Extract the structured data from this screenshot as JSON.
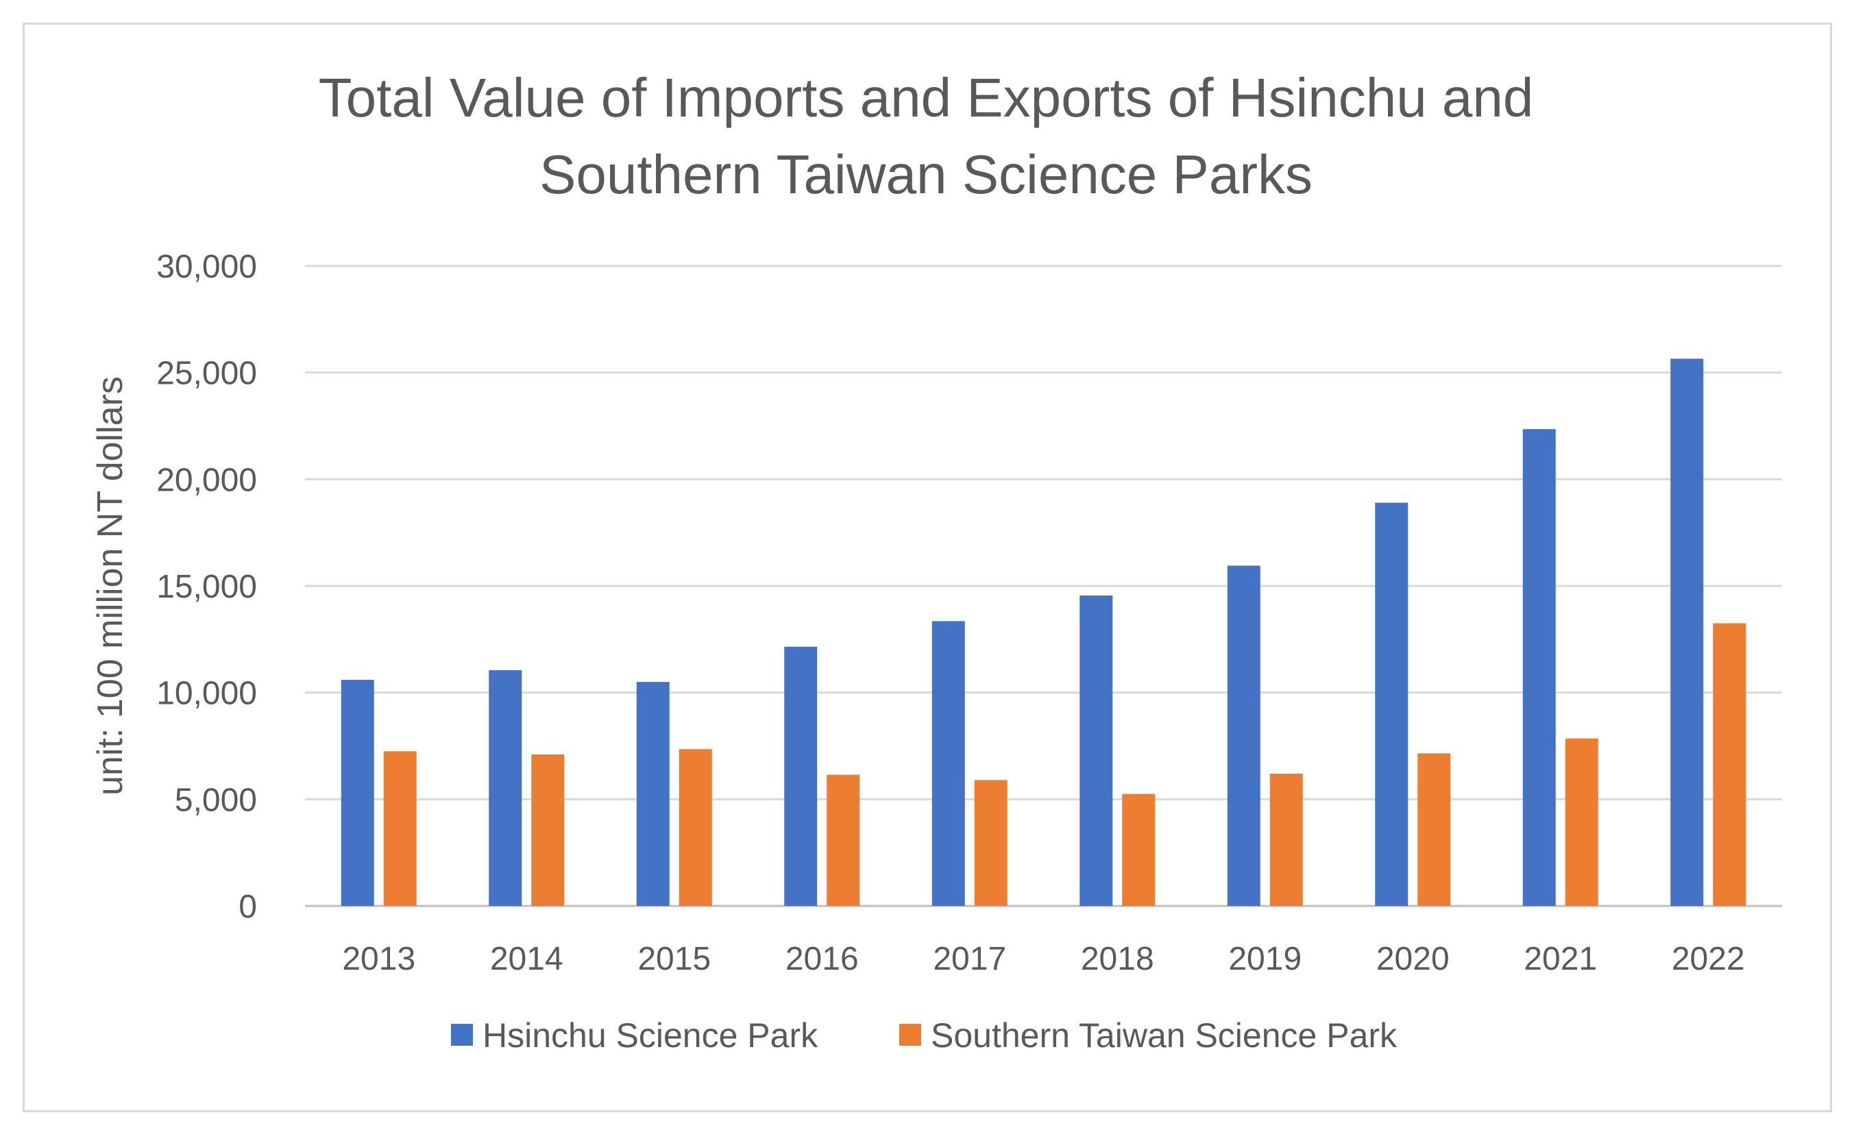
{
  "chart_data": {
    "type": "bar",
    "title": [
      "Total Value of Imports and Exports of Hsinchu and",
      "Southern Taiwan Science Parks"
    ],
    "xlabel": "",
    "ylabel": "unit: 100 million NT dollars",
    "ylim": [
      0,
      30000
    ],
    "yticks": [
      0,
      5000,
      10000,
      15000,
      20000,
      25000,
      30000
    ],
    "ytick_labels": [
      "0",
      "5,000",
      "10,000",
      "15,000",
      "20,000",
      "25,000",
      "30,000"
    ],
    "grid": true,
    "legend_position": "bottom",
    "categories": [
      "2013",
      "2014",
      "2015",
      "2016",
      "2017",
      "2018",
      "2019",
      "2020",
      "2021",
      "2022"
    ],
    "series": [
      {
        "name": "Hsinchu Science Park",
        "color": "#4472c4",
        "values": [
          10600,
          11050,
          10500,
          12150,
          13350,
          14550,
          15950,
          18900,
          22350,
          25650
        ]
      },
      {
        "name": "Southern Taiwan Science Park",
        "color": "#ed7d31",
        "values": [
          7250,
          7100,
          7350,
          6150,
          5900,
          5250,
          6200,
          7150,
          7850,
          13250
        ]
      }
    ]
  }
}
